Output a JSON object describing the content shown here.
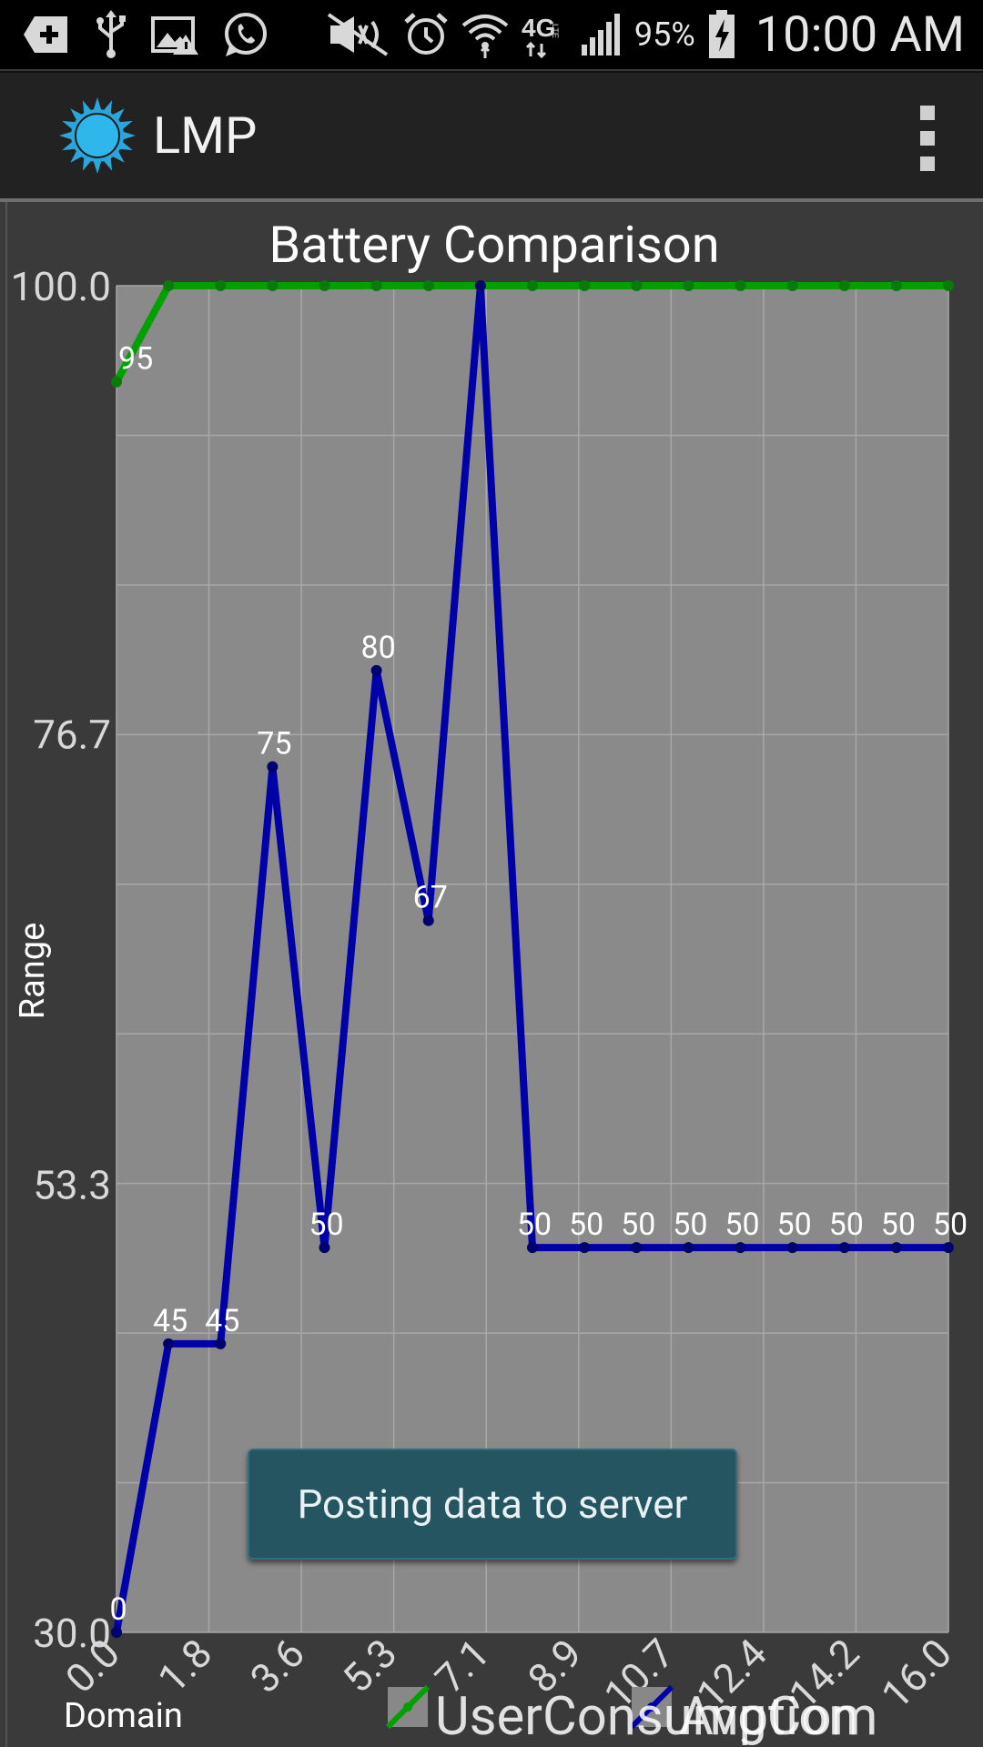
{
  "status_bar": {
    "icons_left": [
      "add-icon",
      "usb-icon",
      "image-warning-icon",
      "whatsapp-icon"
    ],
    "icons_right": [
      "mute-icon",
      "alarm-icon",
      "wifi-icon",
      "4g-lte-icon",
      "signal-icon",
      "battery-charging-icon"
    ],
    "battery_text": "95%",
    "time": "10:00 AM"
  },
  "app_bar": {
    "title": "LMP",
    "logo_icon": "sun-icon",
    "menu_icon": "overflow-menu-icon"
  },
  "chart_data": {
    "type": "line",
    "title": "Battery Comparison",
    "xlabel": "Domain",
    "ylabel": "Range",
    "ylim": [
      30,
      100
    ],
    "xlim": [
      0,
      16
    ],
    "y_ticks": [
      "30.0",
      "53.3",
      "76.7",
      "100.0"
    ],
    "x_ticks": [
      "0.0",
      "1.8",
      "3.6",
      "5.3",
      "7.1",
      "8.9",
      "10.7",
      "12.4",
      "14.2",
      "16.0"
    ],
    "grid": true,
    "legend_placement": "bottom",
    "series": [
      {
        "name": "UserConsumption",
        "color": "#00a000",
        "x": [
          0,
          1,
          2,
          3,
          4,
          5,
          6,
          7,
          8,
          9,
          10,
          11,
          12,
          13,
          14,
          15,
          16
        ],
        "values": [
          95,
          100,
          100,
          100,
          100,
          100,
          100,
          100,
          100,
          100,
          100,
          100,
          100,
          100,
          100,
          100,
          100
        ]
      },
      {
        "name": "AvgCom",
        "color": "#0000a8",
        "x": [
          0,
          1,
          2,
          3,
          4,
          5,
          6,
          7,
          8,
          9,
          10,
          11,
          12,
          13,
          14,
          15,
          16
        ],
        "values": [
          0,
          45,
          45,
          75,
          50,
          80,
          67,
          100,
          50,
          50,
          50,
          50,
          50,
          50,
          50,
          50,
          50
        ]
      }
    ]
  },
  "toast": {
    "text": "Posting data to server"
  }
}
